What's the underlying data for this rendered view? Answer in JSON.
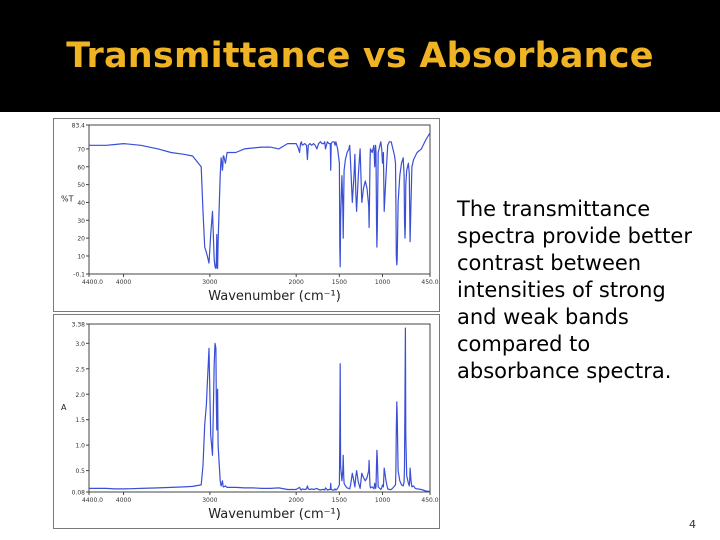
{
  "slide": {
    "title": "Transmittance vs Absorbance",
    "body_text": "The transmittance spectra provide better contrast between intensities of strong and weak bands compared to absorbance spectra.",
    "page_number": "4"
  },
  "colors": {
    "title": "#f0b323",
    "title_bar": "#000000",
    "spectrum_line": "#3a4fd6",
    "axis": "#444444"
  },
  "chart_data": [
    {
      "type": "line",
      "xlabel": "Wavenumber (cm⁻¹)",
      "ylabel": "%T",
      "xlim": [
        4400,
        450
      ],
      "ylim": [
        -0.1,
        83.4
      ],
      "x_ticks": [
        4400.0,
        4000,
        3000,
        2000,
        1500,
        1000,
        450
      ],
      "x_tick_labels": [
        "4400.0",
        "4000",
        "3000",
        "2000",
        "1500",
        "1000",
        "450.0"
      ],
      "y_ticks": [
        -0.1,
        10,
        20,
        30,
        40,
        50,
        60,
        70,
        83.4
      ],
      "y_tick_labels": [
        "-0.1",
        "10",
        "20",
        "30",
        "40",
        "50",
        "60",
        "70",
        "83.4"
      ],
      "series": [
        {
          "x": [
            4400,
            4200,
            4100,
            4000,
            3800,
            3600,
            3450,
            3300,
            3200,
            3100,
            3080,
            3060,
            3040,
            3030,
            3010,
            2990,
            2970,
            2950,
            2940,
            2930,
            2925,
            2920,
            2915,
            2910,
            2905,
            2880,
            2870,
            2860,
            2855,
            2850,
            2845,
            2840,
            2820,
            2800,
            2700,
            2600,
            2500,
            2400,
            2300,
            2200,
            2100,
            2050,
            2000,
            1980,
            1960,
            1950,
            1940,
            1930,
            1900,
            1880,
            1870,
            1860,
            1840,
            1820,
            1800,
            1780,
            1760,
            1740,
            1720,
            1700,
            1690,
            1680,
            1670,
            1660,
            1640,
            1620,
            1605,
            1600,
            1595,
            1580,
            1560,
            1550,
            1540,
            1520,
            1500,
            1495,
            1490,
            1485,
            1470,
            1460,
            1455,
            1450,
            1445,
            1430,
            1410,
            1390,
            1380,
            1370,
            1350,
            1330,
            1320,
            1310,
            1300,
            1280,
            1260,
            1240,
            1220,
            1200,
            1180,
            1160,
            1155,
            1150,
            1145,
            1140,
            1120,
            1100,
            1090,
            1080,
            1075,
            1070,
            1065,
            1060,
            1050,
            1040,
            1030,
            1020,
            1010,
            1000,
            990,
            980,
            960,
            940,
            920,
            900,
            880,
            860,
            850,
            845,
            840,
            835,
            830,
            820,
            800,
            780,
            760,
            750,
            745,
            740,
            735,
            730,
            720,
            700,
            690,
            685,
            680,
            670,
            660,
            640,
            620,
            600,
            550,
            500,
            450
          ],
          "y": [
            72,
            72,
            72.5,
            73,
            72,
            70,
            68,
            67,
            66,
            60,
            35,
            15,
            12,
            10,
            6,
            22,
            35,
            8,
            4,
            3,
            6,
            22,
            4,
            3,
            18,
            55,
            65,
            62,
            58,
            60,
            66,
            66,
            62,
            68,
            68,
            70,
            70.5,
            71,
            71,
            70,
            73,
            73,
            73,
            71,
            68,
            73,
            74,
            72,
            73,
            72,
            64,
            72,
            73,
            72,
            73,
            72,
            70,
            73,
            74,
            73,
            73,
            73,
            74,
            70,
            74,
            73,
            73,
            58,
            73,
            74,
            74,
            72,
            74,
            70,
            62,
            15,
            4,
            30,
            55,
            38,
            20,
            42,
            58,
            64,
            68,
            70,
            72,
            62,
            40,
            55,
            67,
            45,
            35,
            55,
            70,
            40,
            48,
            52,
            48,
            38,
            26,
            45,
            62,
            70,
            68,
            72,
            60,
            72,
            68,
            30,
            15,
            25,
            68,
            70,
            72,
            74,
            70,
            62,
            68,
            35,
            55,
            72,
            74,
            74,
            70,
            66,
            62,
            40,
            10,
            5,
            8,
            40,
            55,
            62,
            65,
            55,
            30,
            20,
            28,
            50,
            58,
            62,
            56,
            35,
            18,
            40,
            60,
            64,
            66,
            68,
            70,
            75,
            79
          ]
        }
      ]
    },
    {
      "type": "line",
      "xlabel": "Wavenumber (cm⁻¹)",
      "ylabel": "A",
      "xlim": [
        4400,
        450
      ],
      "ylim": [
        0.08,
        3.38
      ],
      "x_ticks": [
        4400.0,
        4000,
        3000,
        2000,
        1500,
        1000,
        450
      ],
      "x_tick_labels": [
        "4400.0",
        "4000",
        "3000",
        "2000",
        "1500",
        "1000",
        "450.0"
      ],
      "y_ticks": [
        0.08,
        0.5,
        1.0,
        1.5,
        2.0,
        2.5,
        3.0,
        3.38
      ],
      "y_tick_labels": [
        "0.08",
        "0.5",
        "1.0",
        "1.5",
        "2.0",
        "2.5",
        "3.0",
        "3.38"
      ],
      "series": [
        {
          "x": [
            4400,
            4200,
            4100,
            4000,
            3800,
            3600,
            3450,
            3300,
            3200,
            3100,
            3080,
            3060,
            3040,
            3030,
            3010,
            2990,
            2970,
            2950,
            2940,
            2930,
            2925,
            2920,
            2915,
            2910,
            2905,
            2880,
            2870,
            2860,
            2855,
            2850,
            2845,
            2840,
            2820,
            2800,
            2700,
            2600,
            2500,
            2400,
            2300,
            2200,
            2100,
            2050,
            2000,
            1980,
            1960,
            1950,
            1940,
            1930,
            1900,
            1880,
            1870,
            1860,
            1840,
            1820,
            1800,
            1780,
            1760,
            1740,
            1720,
            1700,
            1690,
            1680,
            1670,
            1660,
            1640,
            1620,
            1605,
            1600,
            1595,
            1580,
            1560,
            1550,
            1540,
            1520,
            1500,
            1495,
            1490,
            1485,
            1470,
            1460,
            1455,
            1450,
            1445,
            1430,
            1410,
            1390,
            1380,
            1370,
            1350,
            1330,
            1320,
            1310,
            1300,
            1280,
            1260,
            1240,
            1220,
            1200,
            1180,
            1160,
            1155,
            1150,
            1145,
            1140,
            1120,
            1100,
            1090,
            1080,
            1075,
            1070,
            1065,
            1060,
            1050,
            1040,
            1030,
            1020,
            1010,
            1000,
            990,
            980,
            960,
            940,
            920,
            900,
            880,
            860,
            850,
            845,
            840,
            835,
            830,
            820,
            800,
            780,
            760,
            750,
            745,
            740,
            735,
            730,
            720,
            700,
            690,
            685,
            680,
            670,
            660,
            640,
            620,
            600,
            550,
            500,
            450
          ],
          "y": [
            0.15,
            0.15,
            0.14,
            0.14,
            0.15,
            0.16,
            0.17,
            0.18,
            0.19,
            0.22,
            0.6,
            1.4,
            1.8,
            2.2,
            2.9,
            1.2,
            0.8,
            2.6,
            3.0,
            2.9,
            1.9,
            1.3,
            2.0,
            2.1,
            1.0,
            0.3,
            0.2,
            0.25,
            0.3,
            0.25,
            0.18,
            0.18,
            0.2,
            0.17,
            0.17,
            0.16,
            0.16,
            0.15,
            0.15,
            0.16,
            0.13,
            0.13,
            0.13,
            0.15,
            0.17,
            0.13,
            0.12,
            0.14,
            0.13,
            0.14,
            0.2,
            0.14,
            0.13,
            0.14,
            0.13,
            0.14,
            0.15,
            0.13,
            0.12,
            0.13,
            0.13,
            0.13,
            0.12,
            0.16,
            0.12,
            0.13,
            0.13,
            0.25,
            0.13,
            0.12,
            0.12,
            0.14,
            0.12,
            0.15,
            0.22,
            1.2,
            2.6,
            0.6,
            0.3,
            0.5,
            0.8,
            0.4,
            0.25,
            0.2,
            0.16,
            0.15,
            0.14,
            0.22,
            0.45,
            0.28,
            0.18,
            0.38,
            0.5,
            0.28,
            0.15,
            0.45,
            0.36,
            0.3,
            0.36,
            0.5,
            0.7,
            0.4,
            0.22,
            0.16,
            0.18,
            0.14,
            0.25,
            0.15,
            0.18,
            0.6,
            0.9,
            0.75,
            0.18,
            0.16,
            0.15,
            0.13,
            0.16,
            0.22,
            0.18,
            0.55,
            0.3,
            0.14,
            0.13,
            0.13,
            0.16,
            0.2,
            0.22,
            0.5,
            1.3,
            1.85,
            1.6,
            0.5,
            0.3,
            0.22,
            0.2,
            0.28,
            0.6,
            2.0,
            3.3,
            1.2,
            0.4,
            0.25,
            0.2,
            0.3,
            0.55,
            0.3,
            0.18,
            0.2,
            0.15,
            0.14,
            0.13,
            0.1,
            0.09
          ]
        }
      ]
    }
  ]
}
